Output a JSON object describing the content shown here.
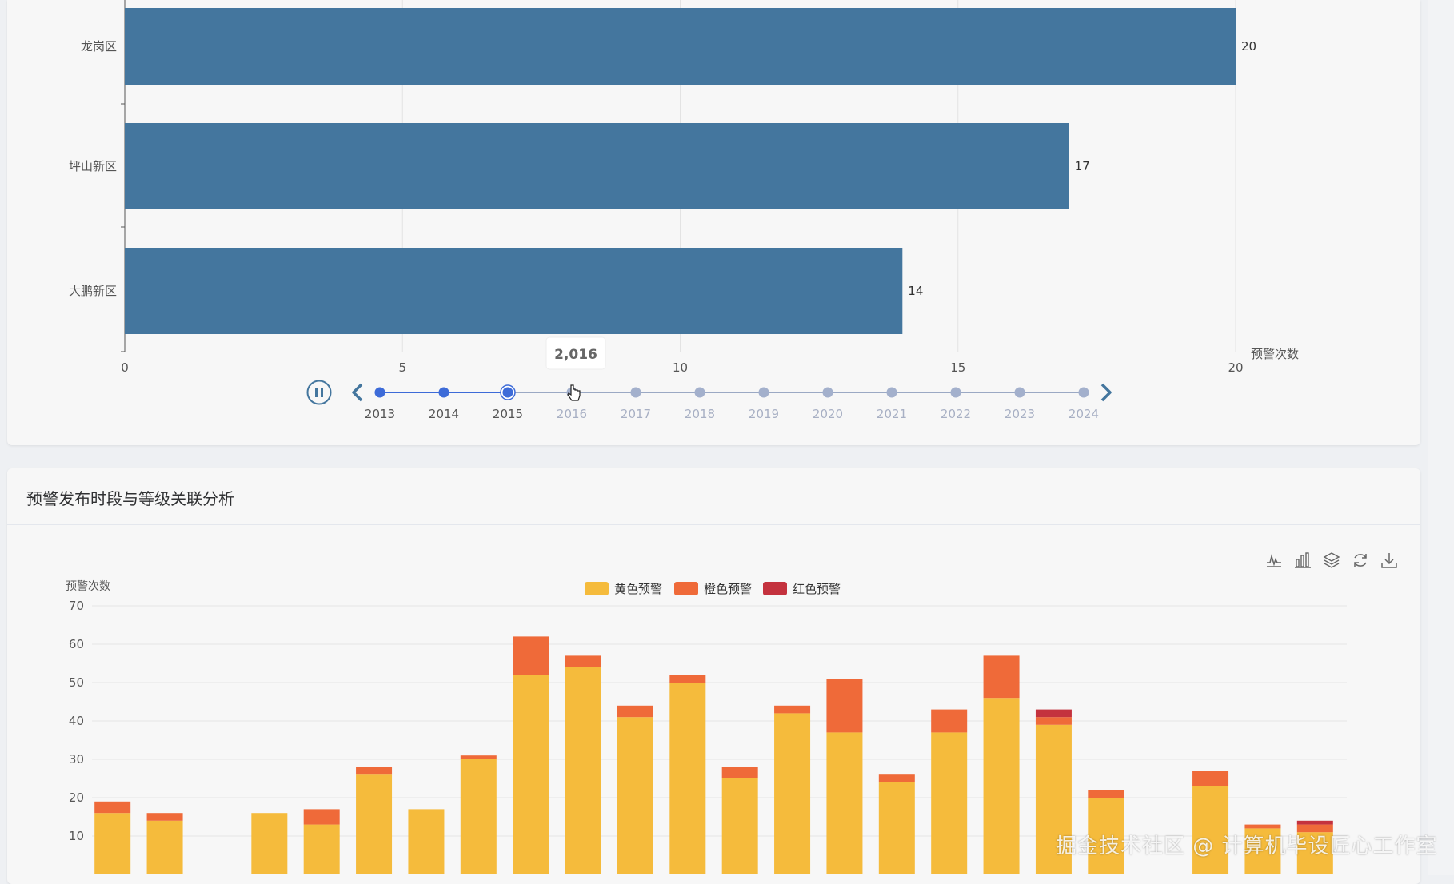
{
  "colors": {
    "bar_blue": "#44769e",
    "timeline_active": "#3d6bd8",
    "timeline_inactive": "#a3b0cc",
    "yellow": "#f5bb3c",
    "orange": "#ef6a39",
    "red": "#c4323e"
  },
  "top_chart": {
    "chart_data": {
      "type": "bar",
      "orientation": "horizontal",
      "categories": [
        "龙岗区",
        "坪山新区",
        "大鹏新区"
      ],
      "values": [
        20,
        17,
        14
      ],
      "xlabel": "预警次数",
      "xlim": [
        0,
        20
      ],
      "xticks": [
        0,
        5,
        10,
        15,
        20
      ],
      "grid": true
    },
    "timeline": {
      "years": [
        "2013",
        "2014",
        "2015",
        "2016",
        "2017",
        "2018",
        "2019",
        "2020",
        "2021",
        "2022",
        "2023",
        "2024"
      ],
      "current_index": 2,
      "hover_index": 3,
      "tooltip": "2,016",
      "play_state": "paused"
    }
  },
  "bottom_card": {
    "title": "预警发布时段与等级关联分析",
    "toolbox_icons": [
      "line-chart-icon",
      "bar-chart-icon",
      "stack-icon",
      "restore-icon",
      "download-icon"
    ],
    "chart_data": {
      "type": "bar",
      "stacked": true,
      "ylabel": "预警次数",
      "ylim": [
        0,
        70
      ],
      "yticks": [
        70,
        60,
        50,
        40,
        30,
        20,
        10
      ],
      "legend_position": "top-center",
      "grid": true,
      "series": [
        {
          "name": "黄色预警",
          "values": [
            16,
            14,
            0,
            16,
            13,
            26,
            17,
            30,
            52,
            54,
            41,
            50,
            25,
            42,
            37,
            24,
            37,
            46,
            39,
            20,
            0,
            23,
            12,
            11
          ]
        },
        {
          "name": "橙色预警",
          "values": [
            3,
            2,
            0,
            0,
            4,
            2,
            0,
            1,
            10,
            3,
            3,
            2,
            3,
            2,
            14,
            2,
            6,
            11,
            2,
            2,
            0,
            4,
            1,
            2
          ]
        },
        {
          "name": "红色预警",
          "values": [
            0,
            0,
            0,
            0,
            0,
            0,
            0,
            0,
            0,
            0,
            0,
            0,
            0,
            0,
            0,
            0,
            0,
            0,
            2,
            0,
            0,
            0,
            0,
            1
          ]
        }
      ]
    }
  },
  "watermark": "掘金技术社区 @ 计算机毕设匠心工作室"
}
